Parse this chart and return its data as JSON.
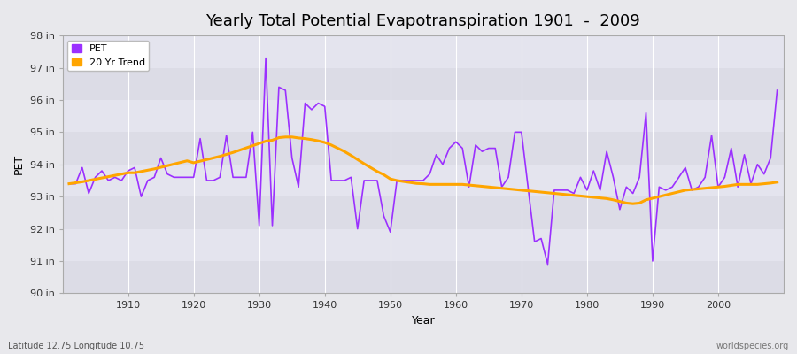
{
  "title": "Yearly Total Potential Evapotranspiration 1901  -  2009",
  "xlabel": "Year",
  "ylabel": "PET",
  "subtitle_left": "Latitude 12.75 Longitude 10.75",
  "subtitle_right": "worldspecies.org",
  "ylim": [
    90,
    98
  ],
  "ytick_labels": [
    "90 in",
    "91 in",
    "92 in",
    "93 in",
    "94 in",
    "95 in",
    "96 in",
    "97 in",
    "98 in"
  ],
  "ytick_vals": [
    90,
    91,
    92,
    93,
    94,
    95,
    96,
    97,
    98
  ],
  "xtick_vals": [
    1910,
    1920,
    1930,
    1940,
    1950,
    1960,
    1970,
    1980,
    1990,
    2000
  ],
  "pet_color": "#9B30FF",
  "trend_color": "#FFA500",
  "bg_color": "#E8E8EC",
  "plot_bg_color": "#E8E8EC",
  "grid_color": "#ffffff",
  "legend_labels": [
    "PET",
    "20 Yr Trend"
  ],
  "years": [
    1901,
    1902,
    1903,
    1904,
    1905,
    1906,
    1907,
    1908,
    1909,
    1910,
    1911,
    1912,
    1913,
    1914,
    1915,
    1916,
    1917,
    1918,
    1919,
    1920,
    1921,
    1922,
    1923,
    1924,
    1925,
    1926,
    1927,
    1928,
    1929,
    1930,
    1931,
    1932,
    1933,
    1934,
    1935,
    1936,
    1937,
    1938,
    1939,
    1940,
    1941,
    1942,
    1943,
    1944,
    1945,
    1946,
    1947,
    1948,
    1949,
    1950,
    1951,
    1952,
    1953,
    1954,
    1955,
    1956,
    1957,
    1958,
    1959,
    1960,
    1961,
    1962,
    1963,
    1964,
    1965,
    1966,
    1967,
    1968,
    1969,
    1970,
    1971,
    1972,
    1973,
    1974,
    1975,
    1976,
    1977,
    1978,
    1979,
    1980,
    1981,
    1982,
    1983,
    1984,
    1985,
    1986,
    1987,
    1988,
    1989,
    1990,
    1991,
    1992,
    1993,
    1994,
    1995,
    1996,
    1997,
    1998,
    1999,
    2000,
    2001,
    2002,
    2003,
    2004,
    2005,
    2006,
    2007,
    2008,
    2009
  ],
  "pet_values": [
    93.4,
    93.4,
    93.9,
    93.1,
    93.6,
    93.8,
    93.5,
    93.6,
    93.5,
    93.8,
    93.9,
    93.0,
    93.5,
    93.6,
    94.2,
    93.7,
    93.6,
    93.6,
    93.6,
    93.6,
    94.8,
    93.5,
    93.5,
    93.6,
    94.9,
    93.6,
    93.6,
    93.6,
    95.0,
    92.1,
    97.3,
    92.1,
    96.4,
    96.3,
    94.2,
    93.3,
    95.9,
    95.7,
    95.9,
    95.8,
    93.5,
    93.5,
    93.5,
    93.6,
    92.0,
    93.5,
    93.5,
    93.5,
    92.4,
    91.9,
    93.5,
    93.5,
    93.5,
    93.5,
    93.5,
    93.7,
    94.3,
    94.0,
    94.5,
    94.7,
    94.5,
    93.3,
    94.6,
    94.4,
    94.5,
    94.5,
    93.3,
    93.6,
    95.0,
    95.0,
    93.3,
    91.6,
    91.7,
    90.9,
    93.2,
    93.2,
    93.2,
    93.1,
    93.6,
    93.2,
    93.8,
    93.2,
    94.4,
    93.6,
    92.6,
    93.3,
    93.1,
    93.6,
    95.6,
    91.0,
    93.3,
    93.2,
    93.3,
    93.6,
    93.9,
    93.2,
    93.3,
    93.6,
    94.9,
    93.3,
    93.6,
    94.5,
    93.3,
    94.3,
    93.4,
    94.0,
    93.7,
    94.2,
    96.3
  ],
  "trend_values": [
    93.4,
    93.43,
    93.46,
    93.5,
    93.54,
    93.58,
    93.62,
    93.66,
    93.7,
    93.74,
    93.74,
    93.78,
    93.82,
    93.86,
    93.91,
    93.96,
    94.01,
    94.06,
    94.11,
    94.05,
    94.1,
    94.15,
    94.2,
    94.25,
    94.31,
    94.37,
    94.44,
    94.51,
    94.58,
    94.65,
    94.72,
    94.75,
    94.83,
    94.85,
    94.85,
    94.82,
    94.8,
    94.77,
    94.73,
    94.68,
    94.6,
    94.5,
    94.4,
    94.28,
    94.15,
    94.02,
    93.9,
    93.78,
    93.68,
    93.55,
    93.5,
    93.47,
    93.44,
    93.41,
    93.4,
    93.38,
    93.38,
    93.38,
    93.38,
    93.38,
    93.38,
    93.36,
    93.34,
    93.32,
    93.3,
    93.28,
    93.26,
    93.24,
    93.22,
    93.2,
    93.18,
    93.16,
    93.14,
    93.12,
    93.1,
    93.08,
    93.06,
    93.04,
    93.02,
    93.0,
    92.98,
    92.96,
    92.94,
    92.9,
    92.85,
    92.8,
    92.78,
    92.8,
    92.9,
    92.95,
    93.0,
    93.05,
    93.1,
    93.15,
    93.2,
    93.22,
    93.24,
    93.26,
    93.28,
    93.3,
    93.32,
    93.35,
    93.38,
    93.38,
    93.38,
    93.38,
    93.4,
    93.42,
    93.45
  ],
  "band_colors": [
    "#DCDCE6",
    "#E4E4EE"
  ],
  "spine_color": "#aaaaaa",
  "tick_label_color": "#333333",
  "title_fontsize": 13,
  "axis_label_fontsize": 9,
  "tick_fontsize": 8,
  "legend_fontsize": 8,
  "pet_linewidth": 1.2,
  "trend_linewidth": 2.2
}
